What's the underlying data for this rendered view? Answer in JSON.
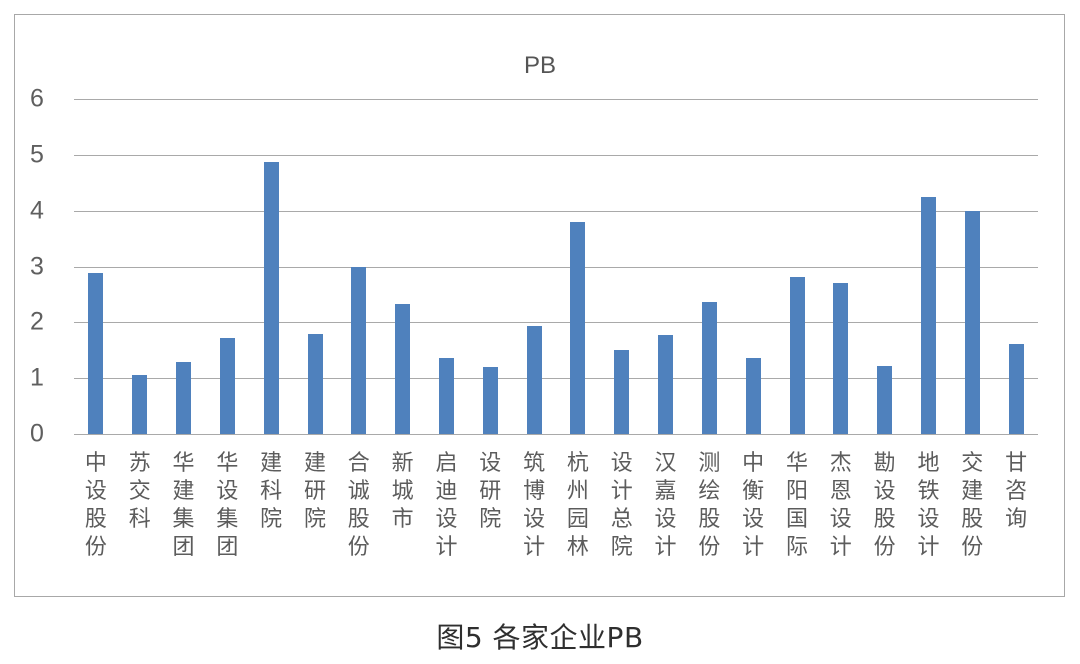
{
  "figure": {
    "caption": "图5   各家企业PB"
  },
  "chart_data": {
    "type": "bar",
    "title": "PB",
    "xlabel": "",
    "ylabel": "",
    "ylim": [
      0,
      6
    ],
    "yticks": [
      0,
      1,
      2,
      3,
      4,
      5,
      6
    ],
    "grid": true,
    "legend": null,
    "bar_color": "#4F81BD",
    "categories": [
      "中设股份",
      "苏交科",
      "华建集团",
      "华设集团",
      "建科院",
      "建研院",
      "合诚股份",
      "新城市",
      "启迪设计",
      "设研院",
      "筑博设计",
      "杭州园林",
      "设计总院",
      "汉嘉设计",
      "测绘股份",
      "中衡设计",
      "华阳国际",
      "杰恩设计",
      "勘设股份",
      "地铁设计",
      "交建股份",
      "甘咨询"
    ],
    "values": [
      2.89,
      1.05,
      1.29,
      1.72,
      4.88,
      1.8,
      2.99,
      2.32,
      1.37,
      1.2,
      1.94,
      3.8,
      1.5,
      1.77,
      2.36,
      1.36,
      2.81,
      2.71,
      1.22,
      4.25,
      3.99,
      1.62
    ]
  }
}
